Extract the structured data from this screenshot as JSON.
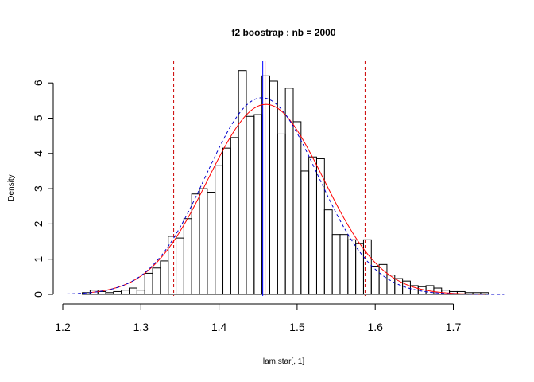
{
  "chart_data": {
    "type": "histogram",
    "title": "f2 boostrap : nb = 2000",
    "xlabel": "lam.star[, 1]",
    "ylabel": "Density",
    "xlim": [
      1.2,
      1.76
    ],
    "ylim": [
      0,
      6.4
    ],
    "x_ticks": [
      1.2,
      1.3,
      1.4,
      1.5,
      1.6,
      1.7
    ],
    "x_tick_labels": [
      "1.2",
      "1.3",
      "1.4",
      "1.5",
      "1.6",
      "1.7"
    ],
    "y_ticks": [
      0,
      1,
      2,
      3,
      4,
      5,
      6
    ],
    "y_tick_labels": [
      "0",
      "1",
      "2",
      "3",
      "4",
      "5",
      "6"
    ],
    "bin_start": 1.225,
    "bin_width": 0.01,
    "densities": [
      0.05,
      0.12,
      0.08,
      0.05,
      0.08,
      0.12,
      0.18,
      0.12,
      0.6,
      0.75,
      0.95,
      1.65,
      1.6,
      2.15,
      2.85,
      3.0,
      2.9,
      3.65,
      4.15,
      4.45,
      6.35,
      5.05,
      5.1,
      6.2,
      6.05,
      4.55,
      5.85,
      4.9,
      3.5,
      3.9,
      3.85,
      2.4,
      1.7,
      1.7,
      1.55,
      1.45,
      1.55,
      0.8,
      0.85,
      0.55,
      0.45,
      0.38,
      0.25,
      0.22,
      0.25,
      0.18,
      0.12,
      0.08,
      0.08,
      0.05,
      0.05,
      0.05
    ],
    "normal_fit": {
      "mean": 1.46,
      "sd": 0.074,
      "color": "#ff0000",
      "style": "solid"
    },
    "density_estimate": {
      "mean": 1.455,
      "sd": 0.0715,
      "color": "#0000cc",
      "style": "dashed",
      "x_range": [
        1.205,
        1.765
      ]
    },
    "vertical_lines": [
      {
        "x": 1.342,
        "color": "#cc0000",
        "style": "dashed",
        "name": "ci-lower"
      },
      {
        "x": 1.587,
        "color": "#cc0000",
        "style": "dashed",
        "name": "ci-upper"
      },
      {
        "x": 1.456,
        "color": "#0000ff",
        "style": "solid",
        "name": "median"
      },
      {
        "x": 1.459,
        "color": "#ff0000",
        "style": "solid",
        "name": "mean"
      }
    ]
  }
}
